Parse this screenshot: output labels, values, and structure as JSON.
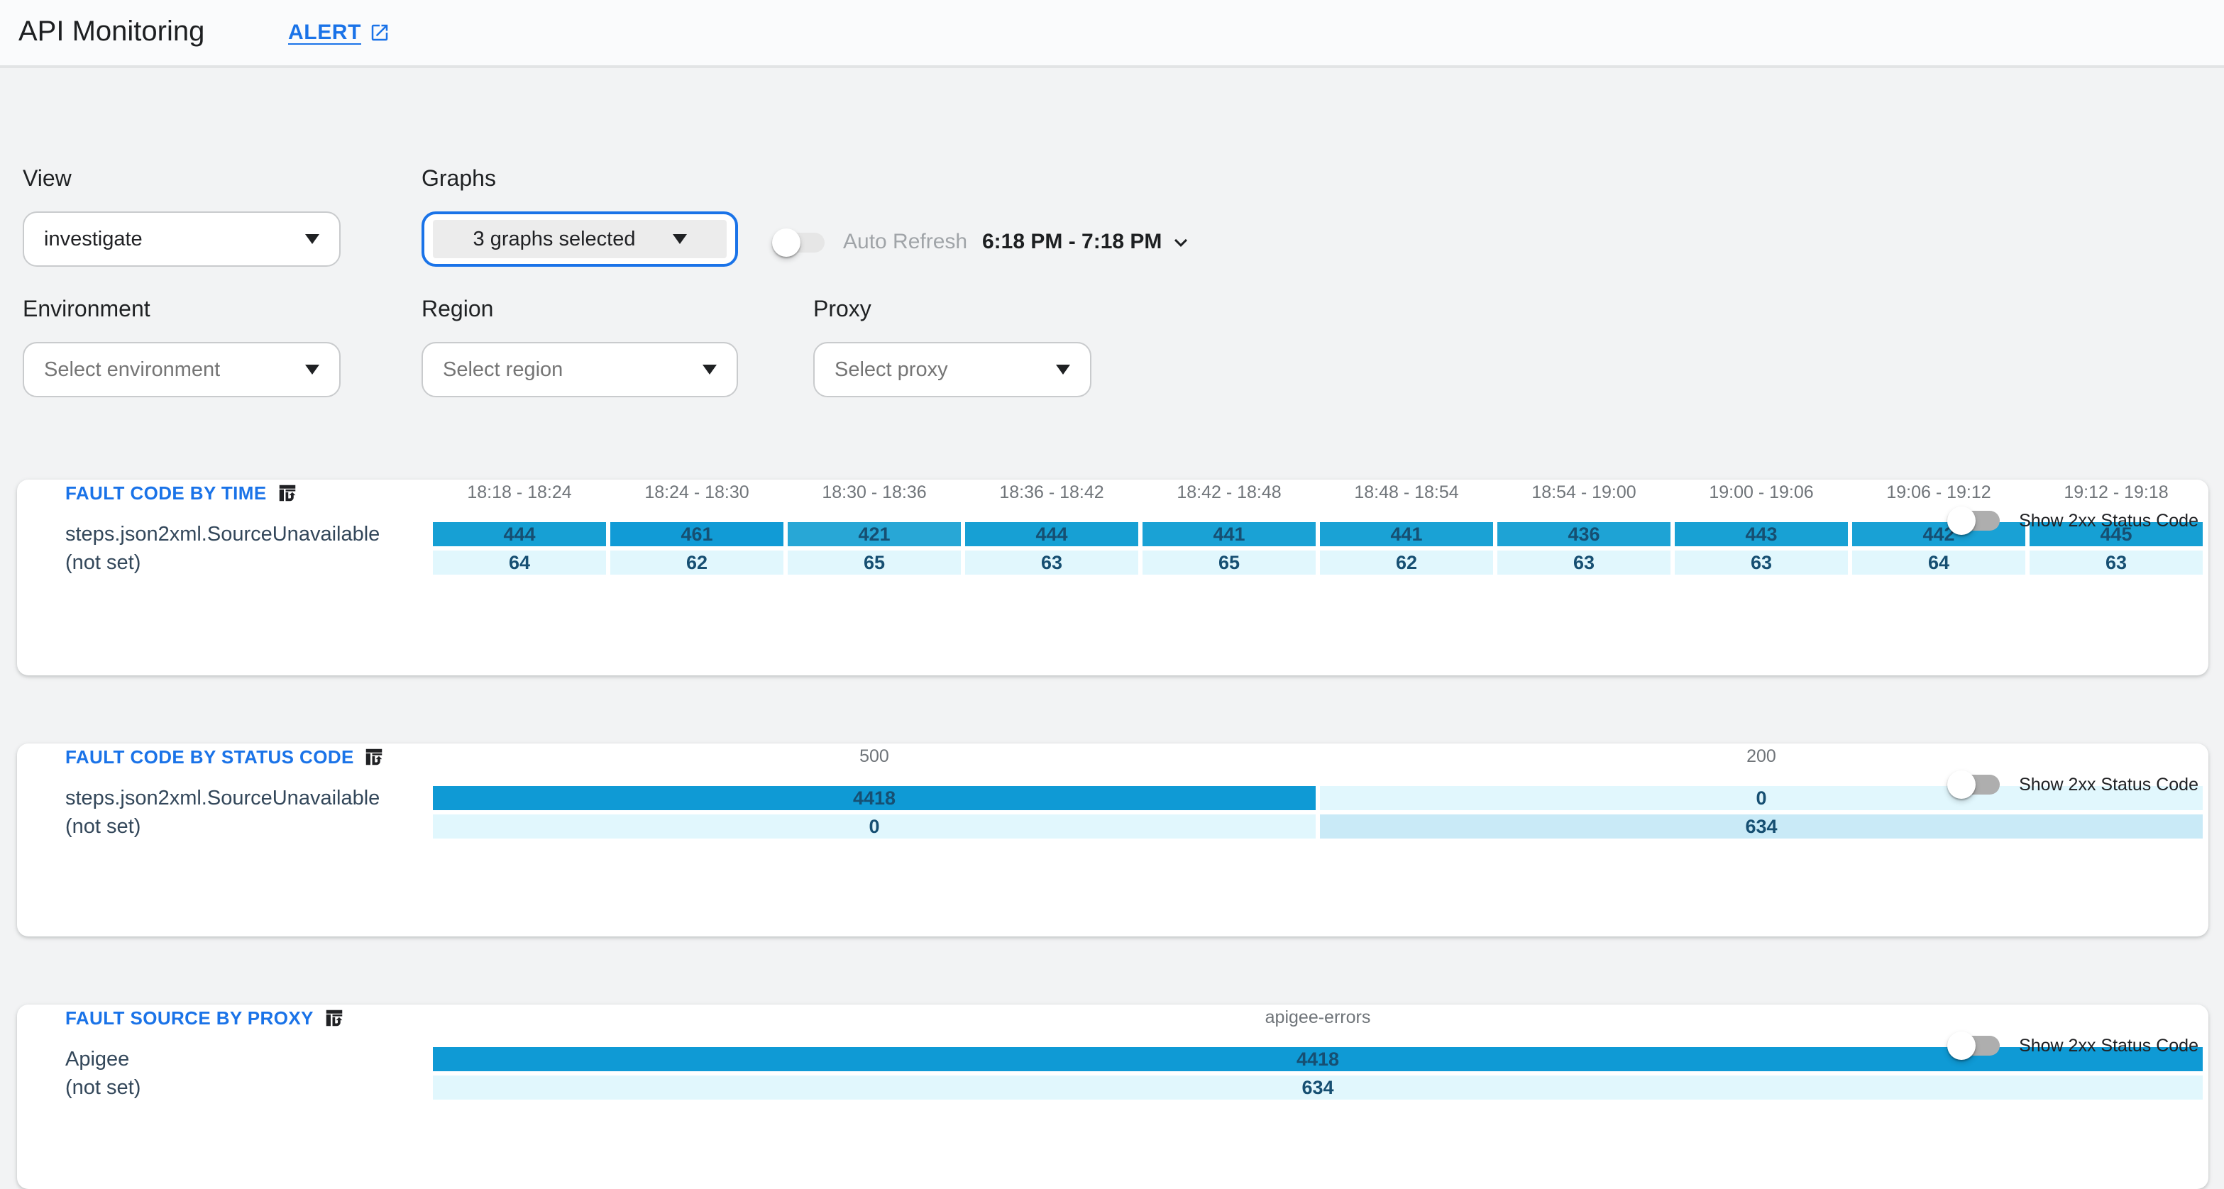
{
  "header": {
    "title": "API Monitoring",
    "alert_label": "ALERT"
  },
  "filters": {
    "view": {
      "label": "View",
      "value": "investigate"
    },
    "graphs": {
      "label": "Graphs",
      "value": "3 graphs selected"
    },
    "auto_refresh_label": "Auto Refresh",
    "auto_refresh_on": false,
    "time_range": "6:18 PM - 7:18 PM",
    "environment": {
      "label": "Environment",
      "placeholder": "Select environment"
    },
    "region": {
      "label": "Region",
      "placeholder": "Select region"
    },
    "proxy": {
      "label": "Proxy",
      "placeholder": "Select proxy"
    }
  },
  "colors": {
    "accent_blue": "#1a73e8",
    "cell_dark": "#149bd5",
    "cell_light": "#e1f7fd",
    "cell_mid": "#c9eaf7",
    "cell_text": "#164f72",
    "page_bg": "#f2f3f4"
  },
  "toggle_label": "Show 2xx Status Code",
  "cards": [
    {
      "title": "FAULT CODE BY TIME",
      "toggle_label": "Show 2xx Status Code",
      "toggle_on": false,
      "type": "heatmap-table",
      "columns": [
        "18:18 - 18:24",
        "18:24 - 18:30",
        "18:30 - 18:36",
        "18:36 - 18:42",
        "18:42 - 18:48",
        "18:48 - 18:54",
        "18:54 - 19:00",
        "19:00 - 19:06",
        "19:06 - 19:12",
        "19:12 - 19:18"
      ],
      "rows": [
        {
          "label": "steps.json2xml.SourceUnavailable",
          "cells": [
            {
              "value": "444",
              "bg": "#17a0d4"
            },
            {
              "value": "461",
              "bg": "#119bd6"
            },
            {
              "value": "421",
              "bg": "#28a7d6"
            },
            {
              "value": "444",
              "bg": "#17a0d4"
            },
            {
              "value": "441",
              "bg": "#1aa2d5"
            },
            {
              "value": "441",
              "bg": "#1aa2d5"
            },
            {
              "value": "436",
              "bg": "#1ea3d5"
            },
            {
              "value": "443",
              "bg": "#18a1d4"
            },
            {
              "value": "442",
              "bg": "#19a1d5"
            },
            {
              "value": "445",
              "bg": "#16a0d4"
            }
          ]
        },
        {
          "label": "(not set)",
          "cells": [
            {
              "value": "64",
              "bg": "#e1f7fd"
            },
            {
              "value": "62",
              "bg": "#e1f7fd"
            },
            {
              "value": "65",
              "bg": "#e1f7fd"
            },
            {
              "value": "63",
              "bg": "#e1f7fd"
            },
            {
              "value": "65",
              "bg": "#e1f7fd"
            },
            {
              "value": "62",
              "bg": "#e1f7fd"
            },
            {
              "value": "63",
              "bg": "#e1f7fd"
            },
            {
              "value": "63",
              "bg": "#e1f7fd"
            },
            {
              "value": "64",
              "bg": "#e1f7fd"
            },
            {
              "value": "63",
              "bg": "#e1f7fd"
            }
          ]
        }
      ]
    },
    {
      "title": "FAULT CODE BY STATUS CODE",
      "toggle_label": "Show 2xx Status Code",
      "toggle_on": false,
      "type": "heatmap-table",
      "columns": [
        "500",
        "200"
      ],
      "rows": [
        {
          "label": "steps.json2xml.SourceUnavailable",
          "cells": [
            {
              "value": "4418",
              "bg": "#0f9ad5"
            },
            {
              "value": "0",
              "bg": "#e1f7fd"
            }
          ]
        },
        {
          "label": "(not set)",
          "cells": [
            {
              "value": "0",
              "bg": "#e1f7fd"
            },
            {
              "value": "634",
              "bg": "#c9eaf7"
            }
          ]
        }
      ]
    },
    {
      "title": "FAULT SOURCE BY PROXY",
      "toggle_label": "Show 2xx Status Code",
      "toggle_on": false,
      "type": "heatmap-table",
      "columns": [
        "apigee-errors"
      ],
      "rows": [
        {
          "label": "Apigee",
          "cells": [
            {
              "value": "4418",
              "bg": "#0f9ad5"
            }
          ]
        },
        {
          "label": "(not set)",
          "cells": [
            {
              "value": "634",
              "bg": "#e1f7fd"
            }
          ]
        }
      ]
    }
  ]
}
